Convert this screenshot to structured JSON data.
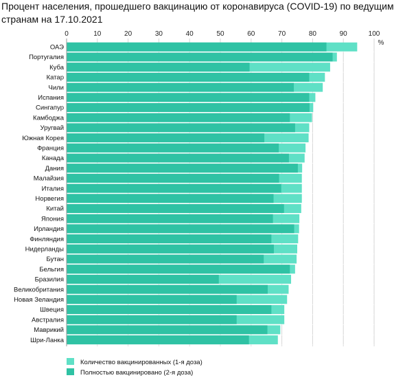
{
  "title": "Процент населения, прошедшего вакцинацию от коронавируса (COVID-19) по ведущим странам на 17.10.2021",
  "chart_data": {
    "type": "bar",
    "orientation": "horizontal",
    "stacked_overlay": true,
    "title": "Процент населения, прошедшего вакцинацию от коронавируса (COVID-19) по ведущим странам на 17.10.2021",
    "unit": "%",
    "xlim": [
      0,
      100
    ],
    "x_ticks": [
      0,
      10,
      20,
      30,
      40,
      50,
      60,
      70,
      80,
      90,
      100
    ],
    "x_axis_position": "top",
    "grid": true,
    "legend_placement": "bottom-left",
    "categories": [
      "ОАЭ",
      "Португалия",
      "Куба",
      "Катар",
      "Чили",
      "Испания",
      "Сингапур",
      "Камбоджа",
      "Уругвай",
      "Южная Корея",
      "Франция",
      "Канада",
      "Дания",
      "Малайзия",
      "Италия",
      "Норвегия",
      "Китай",
      "Япония",
      "Ирландия",
      "Финляндия",
      "Нидерланды",
      "Бутан",
      "Бельгия",
      "Бразилия",
      "Великобритания",
      "Новая Зеландия",
      "Швеция",
      "Австралия",
      "Маврикий",
      "Шри-Ланка"
    ],
    "series": [
      {
        "name": "Количество вакцинированных (1-я доза)",
        "color": "#5fe0c6",
        "values": [
          94.5,
          87.9,
          85.7,
          84.0,
          83.3,
          80.9,
          80.2,
          79.8,
          78.9,
          78.7,
          77.7,
          77.4,
          76.6,
          76.5,
          76.5,
          76.5,
          76.3,
          75.7,
          75.6,
          75.3,
          75.0,
          74.8,
          74.3,
          73.0,
          72.2,
          71.7,
          70.8,
          70.8,
          69.5,
          68.7
        ]
      },
      {
        "name": "Полностью вакцинировано (2-я доза)",
        "color": "#2fc2a4",
        "values": [
          84.5,
          86.5,
          59.5,
          78.9,
          73.9,
          78.9,
          79.0,
          72.6,
          74.3,
          64.3,
          69.0,
          72.3,
          75.2,
          69.1,
          69.8,
          67.3,
          70.7,
          67.1,
          74.0,
          66.6,
          67.4,
          64.1,
          72.6,
          49.5,
          65.4,
          55.3,
          66.6,
          55.3,
          65.3,
          59.3
        ]
      }
    ]
  }
}
